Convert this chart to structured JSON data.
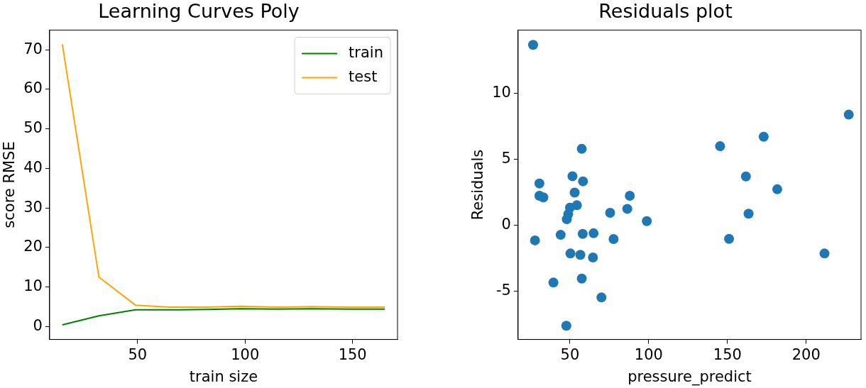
{
  "chart_data": [
    {
      "type": "line",
      "title": "Learning Curves Poly",
      "xlabel": "train size",
      "ylabel": "score RMSE",
      "x": [
        15,
        32,
        49,
        65,
        82,
        98,
        115,
        131,
        148,
        165
      ],
      "series": [
        {
          "name": "train",
          "color": "#008000",
          "values": [
            0.4,
            2.7,
            4.2,
            4.2,
            4.3,
            4.5,
            4.4,
            4.5,
            4.4,
            4.4
          ]
        },
        {
          "name": "test",
          "color": "#ffa500",
          "values": [
            71.4,
            12.5,
            5.4,
            4.9,
            4.9,
            5.1,
            4.9,
            5.0,
            4.9,
            4.9
          ]
        }
      ],
      "xlim": [
        9.1,
        170.9
      ],
      "xticks": [
        50,
        100,
        150
      ],
      "ylim": [
        -3.3,
        75
      ],
      "yticks": [
        0,
        10,
        20,
        30,
        40,
        50,
        60,
        70
      ],
      "grid": false,
      "legend": "top right",
      "marker": "none",
      "line_style": "solid"
    },
    {
      "type": "scatter",
      "title": "Residuals plot",
      "xlabel": "pressure_predict",
      "ylabel": "Residuals",
      "x": [
        26.6,
        227,
        173,
        145.3,
        57.5,
        161.7,
        51.6,
        58.3,
        30.6,
        181.6,
        53,
        30.6,
        33.1,
        88,
        54.4,
        50,
        86.4,
        48.9,
        48,
        75.5,
        163.4,
        98.8,
        44.1,
        58.1,
        65,
        27.8,
        77.7,
        151,
        50.3,
        56.6,
        64.6,
        211.6,
        39.5,
        57.5,
        70,
        47.7
      ],
      "series": [
        {
          "color": "#1f77b4",
          "values": [
            13.64,
            8.36,
            6.69,
            5.97,
            5.77,
            3.68,
            3.7,
            3.31,
            3.15,
            2.71,
            2.46,
            2.22,
            2.1,
            2.22,
            1.5,
            1.32,
            1.23,
            0.83,
            0.44,
            0.93,
            0.86,
            0.3,
            -0.74,
            -0.67,
            -0.62,
            -1.16,
            -1.06,
            -1.04,
            -2.15,
            -2.25,
            -2.45,
            -2.15,
            -4.35,
            -4.05,
            -5.48,
            -7.62
          ]
        }
      ],
      "xlim": [
        17.1,
        234.8
      ],
      "xticks": [
        50,
        100,
        150,
        200
      ],
      "ylim": [
        -8.66,
        14.76
      ],
      "yticks": [
        -5,
        0,
        5,
        10
      ],
      "grid": false,
      "legend": false,
      "marker": "circle"
    }
  ]
}
